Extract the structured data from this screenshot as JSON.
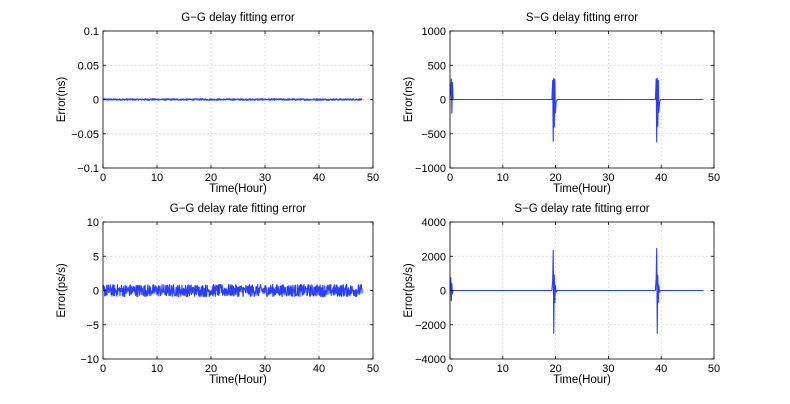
{
  "chart_data": [
    {
      "type": "line",
      "title": "G−G delay fitting error",
      "xlabel": "Time(Hour)",
      "ylabel": "Error(ns)",
      "xlim": [
        0,
        50
      ],
      "ylim": [
        -0.1,
        0.1
      ],
      "xticks": [
        0,
        10,
        20,
        30,
        40,
        50
      ],
      "xtick_labels": [
        "0",
        "10",
        "20",
        "30",
        "40",
        "50"
      ],
      "yticks": [
        -0.1,
        -0.05,
        0,
        0.05,
        0.1
      ],
      "ytick_labels": [
        "−0.1",
        "−0.05",
        "0",
        "0.05",
        "0.1"
      ],
      "grid": true,
      "line_color": "#2a3ff6",
      "series": [
        {
          "x": [
            0,
            48
          ],
          "y": [
            0,
            0
          ],
          "noise_amplitude": 0.0012
        }
      ]
    },
    {
      "type": "line",
      "title": "S−G delay fitting error",
      "xlabel": "Time(Hour)",
      "ylabel": "Error(ns)",
      "xlim": [
        0,
        50
      ],
      "ylim": [
        -1000,
        1000
      ],
      "xticks": [
        0,
        10,
        20,
        30,
        40,
        50
      ],
      "xtick_labels": [
        "0",
        "10",
        "20",
        "30",
        "40",
        "50"
      ],
      "yticks": [
        -1000,
        -500,
        0,
        500,
        1000
      ],
      "ytick_labels": [
        "−1000",
        "−500",
        "0",
        "500",
        "1000"
      ],
      "grid": true,
      "line_color": "#2a3ff6",
      "series": [
        {
          "x": [
            0,
            0.15,
            0.25,
            0.35,
            0.45,
            0.6,
            19.3,
            19.45,
            19.55,
            19.65,
            19.75,
            19.85,
            19.95,
            20.1,
            20.3,
            38.9,
            39.05,
            39.15,
            39.25,
            39.35,
            39.45,
            39.55,
            39.7,
            39.9,
            48
          ],
          "y": [
            0,
            150,
            300,
            -200,
            250,
            0,
            0,
            280,
            -610,
            310,
            -400,
            290,
            -200,
            -40,
            0,
            0,
            300,
            -620,
            310,
            -390,
            280,
            -190,
            -40,
            0,
            0
          ]
        }
      ]
    },
    {
      "type": "line",
      "title": "G−G delay rate fitting error",
      "xlabel": "Time(Hour)",
      "ylabel": "Error(ps/s)",
      "xlim": [
        0,
        50
      ],
      "ylim": [
        -10,
        10
      ],
      "xticks": [
        0,
        10,
        20,
        30,
        40,
        50
      ],
      "xtick_labels": [
        "0",
        "10",
        "20",
        "30",
        "40",
        "50"
      ],
      "yticks": [
        -10,
        -5,
        0,
        5,
        10
      ],
      "ytick_labels": [
        "−10",
        "−5",
        "0",
        "5",
        "10"
      ],
      "grid": true,
      "line_color": "#2a3ff6",
      "series": [
        {
          "x": [
            0,
            48
          ],
          "y": [
            0,
            0
          ],
          "noise_amplitude": 0.9
        }
      ]
    },
    {
      "type": "line",
      "title": "S−G delay rate fitting error",
      "xlabel": "Time(Hour)",
      "ylabel": "Error(ps/s)",
      "xlim": [
        0,
        50
      ],
      "ylim": [
        -4000,
        4000
      ],
      "xticks": [
        0,
        10,
        20,
        30,
        40,
        50
      ],
      "xtick_labels": [
        "0",
        "10",
        "20",
        "30",
        "40",
        "50"
      ],
      "yticks": [
        -4000,
        -2000,
        0,
        2000,
        4000
      ],
      "ytick_labels": [
        "−4000",
        "−2000",
        "0",
        "2000",
        "4000"
      ],
      "grid": true,
      "line_color": "#2a3ff6",
      "series": [
        {
          "x": [
            0,
            0.15,
            0.25,
            0.35,
            0.45,
            0.6,
            19.3,
            19.45,
            19.55,
            19.65,
            19.75,
            19.85,
            19.95,
            20.1,
            20.3,
            38.9,
            39.05,
            39.15,
            39.25,
            39.35,
            39.45,
            39.55,
            39.7,
            39.9,
            48
          ],
          "y": [
            0,
            750,
            -600,
            400,
            -200,
            0,
            0,
            600,
            2350,
            -2500,
            900,
            -700,
            300,
            -100,
            0,
            0,
            700,
            2450,
            -2500,
            900,
            -700,
            300,
            -100,
            0,
            0
          ]
        }
      ]
    }
  ]
}
